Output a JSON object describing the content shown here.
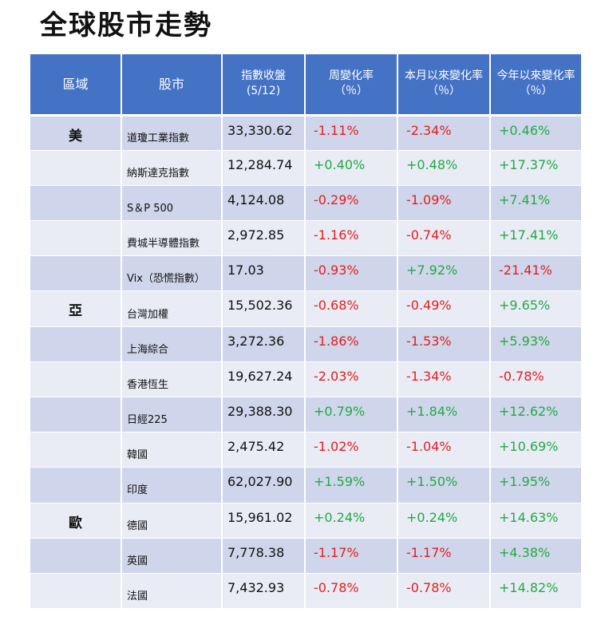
{
  "title": "全球股市走勢",
  "colors": {
    "header_bg": "#4472c4",
    "row_odd": "#cfd5ea",
    "row_even": "#e9ebf5",
    "positive": "#22aa44",
    "negative": "#e02020"
  },
  "headers": {
    "region": "區域",
    "name": "股市",
    "close": "指數收盤",
    "close_sub": "(5/12)",
    "week": "周變化率",
    "week_sub": "（％）",
    "month": "本月以來變化率",
    "month_sub": "（％）",
    "ytd": "今年以來變化率",
    "ytd_sub": "（％）"
  },
  "rows": [
    {
      "region": "美",
      "name": "道瓊工業指數",
      "close": "33,330.62",
      "week": "-1.11%",
      "month": "-2.34%",
      "ytd": "+0.46%"
    },
    {
      "region": "",
      "name": "納斯達克指數",
      "close": "12,284.74",
      "week": "+0.40%",
      "month": "+0.48%",
      "ytd": "+17.37%"
    },
    {
      "region": "",
      "name": "S＆P 500",
      "close": "4,124.08",
      "week": "-0.29%",
      "month": "-1.09%",
      "ytd": "+7.41%"
    },
    {
      "region": "",
      "name": "費城半導體指數",
      "close": "2,972.85",
      "week": "-1.16%",
      "month": "-0.74%",
      "ytd": "+17.41%"
    },
    {
      "region": "",
      "name": "Vix（恐慌指數）",
      "close": "17.03",
      "week": "-0.93%",
      "month": "+7.92%",
      "ytd": "-21.41%"
    },
    {
      "region": "亞",
      "name": "台灣加權",
      "close": "15,502.36",
      "week": "-0.68%",
      "month": "-0.49%",
      "ytd": "+9.65%"
    },
    {
      "region": "",
      "name": "上海綜合",
      "close": "3,272.36",
      "week": "-1.86%",
      "month": "-1.53%",
      "ytd": "+5.93%"
    },
    {
      "region": "",
      "name": "香港恆生",
      "close": "19,627.24",
      "week": "-2.03%",
      "month": "-1.34%",
      "ytd": "-0.78%"
    },
    {
      "region": "",
      "name": "日經225",
      "close": "29,388.30",
      "week": "+0.79%",
      "month": "+1.84%",
      "ytd": "+12.62%"
    },
    {
      "region": "",
      "name": "韓國",
      "close": "2,475.42",
      "week": "-1.02%",
      "month": "-1.04%",
      "ytd": "+10.69%"
    },
    {
      "region": "",
      "name": "印度",
      "close": "62,027.90",
      "week": "+1.59%",
      "month": "+1.50%",
      "ytd": "+1.95%"
    },
    {
      "region": "歐",
      "name": "德國",
      "close": "15,961.02",
      "week": "+0.24%",
      "month": "+0.24%",
      "ytd": "+14.63%"
    },
    {
      "region": "",
      "name": "英國",
      "close": "7,778.38",
      "week": "-1.17%",
      "month": "-1.17%",
      "ytd": "+4.38%"
    },
    {
      "region": "",
      "name": "法國",
      "close": "7,432.93",
      "week": "-0.78%",
      "month": "-0.78%",
      "ytd": "+14.82%"
    }
  ]
}
